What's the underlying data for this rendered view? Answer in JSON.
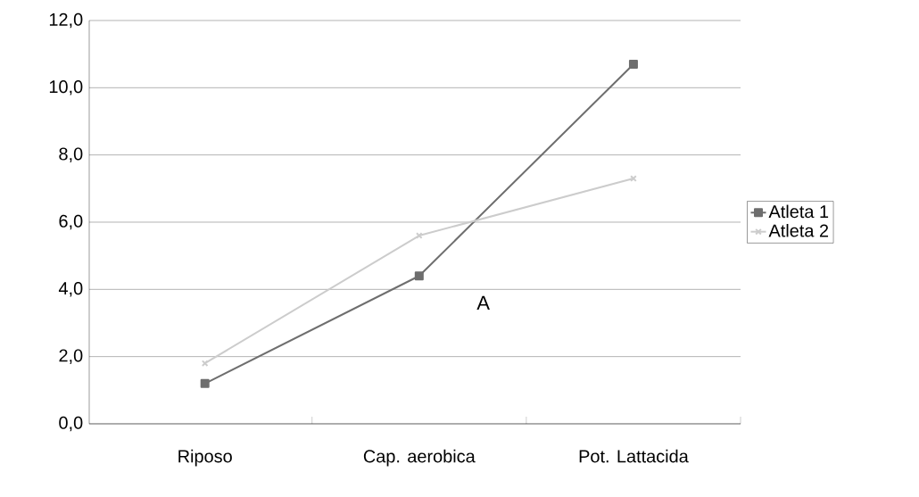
{
  "chart_data": {
    "type": "line",
    "categories": [
      "Riposo",
      "Cap. aerobica",
      "Pot. Lattacida"
    ],
    "series": [
      {
        "name": "Atleta 1",
        "color": "#6e6e6e",
        "marker": "square",
        "values": [
          1.2,
          4.4,
          10.7
        ]
      },
      {
        "name": "Atleta 2",
        "color": "#cccccc",
        "marker": "cross",
        "values": [
          1.8,
          5.6,
          7.3
        ]
      }
    ],
    "ylim": [
      0,
      12
    ],
    "yticks": [
      {
        "value": 0,
        "label": "0,0"
      },
      {
        "value": 2,
        "label": "2,0"
      },
      {
        "value": 4,
        "label": "4,0"
      },
      {
        "value": 6,
        "label": "6,0"
      },
      {
        "value": 8,
        "label": "8,0"
      },
      {
        "value": 10,
        "label": "10,0"
      },
      {
        "value": 12,
        "label": "12,0"
      }
    ],
    "grid": "y",
    "legend": "right",
    "line_style": "solid",
    "annotations": [
      "A"
    ]
  }
}
